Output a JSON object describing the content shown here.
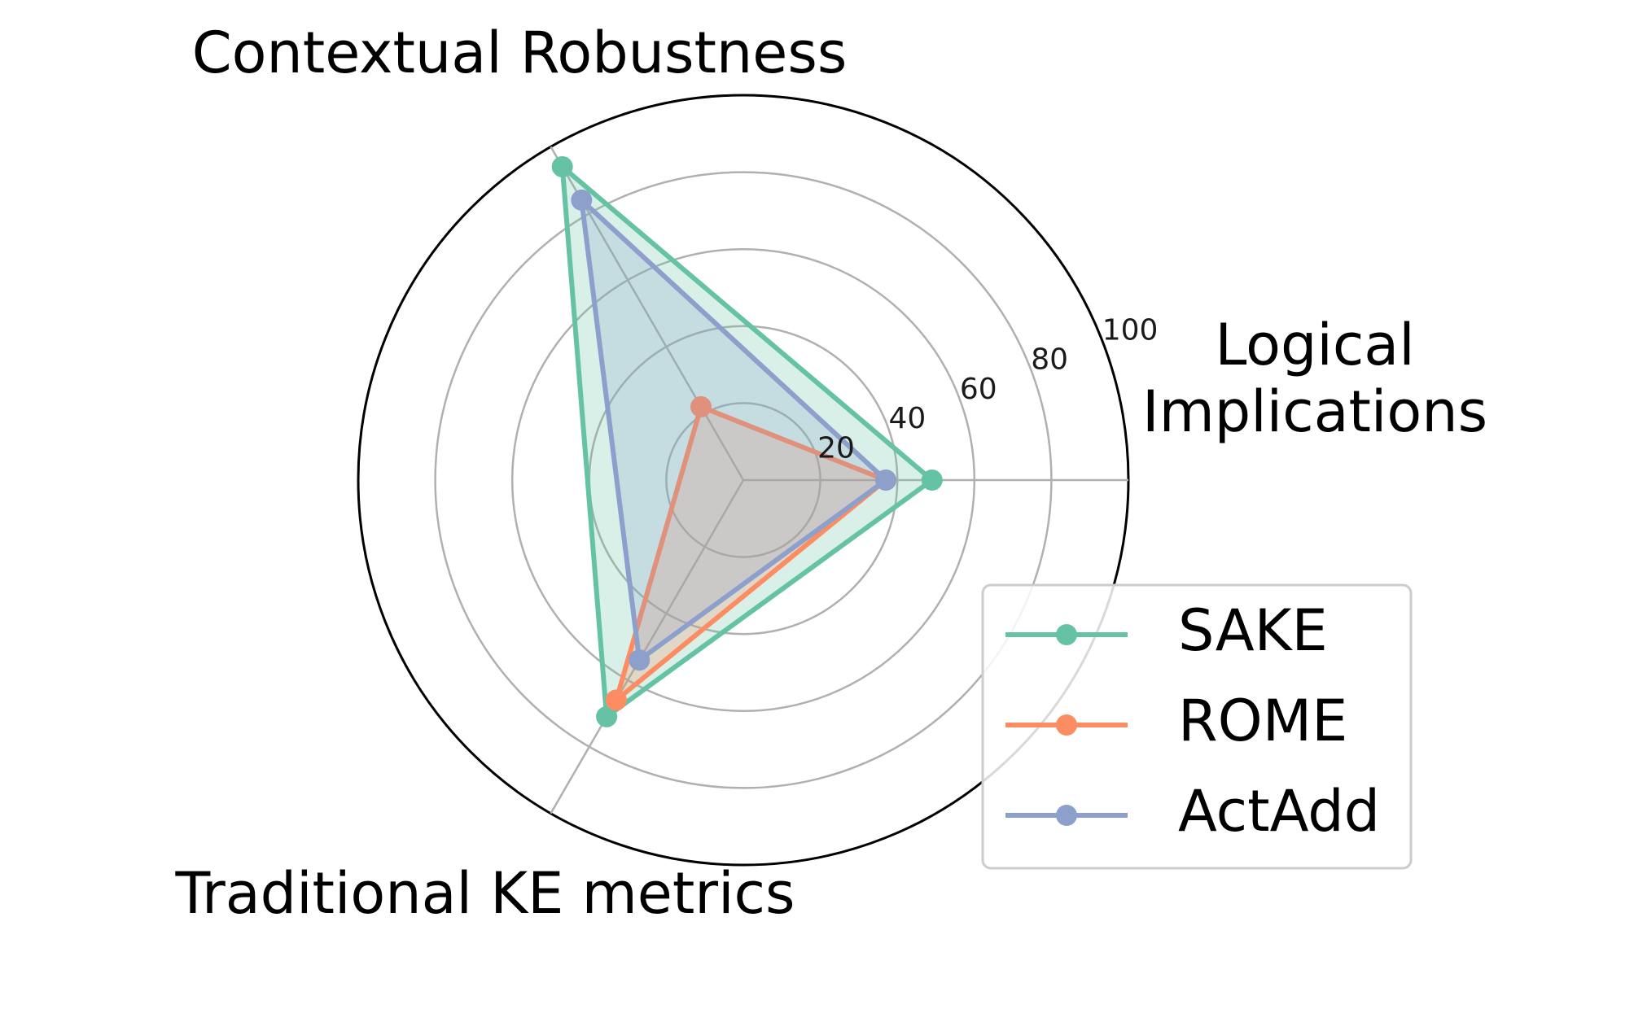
{
  "chart_data": {
    "type": "radar",
    "axes": [
      "Logical\nImplications",
      "Contextual Robustness",
      "Traditional KE metrics"
    ],
    "rlim": [
      0,
      100
    ],
    "rticks": [
      "20",
      "40",
      "60",
      "80",
      "100"
    ],
    "grid": true,
    "legend_position": "bottom-right",
    "series": [
      {
        "name": "SAKE",
        "values": [
          49,
          94,
          71
        ],
        "color": "#66c2a5"
      },
      {
        "name": "ROME",
        "values": [
          37,
          22,
          66
        ],
        "color": "#fc8d62"
      },
      {
        "name": "ActAdd",
        "values": [
          37,
          84,
          54
        ],
        "color": "#8da0cb"
      }
    ]
  }
}
